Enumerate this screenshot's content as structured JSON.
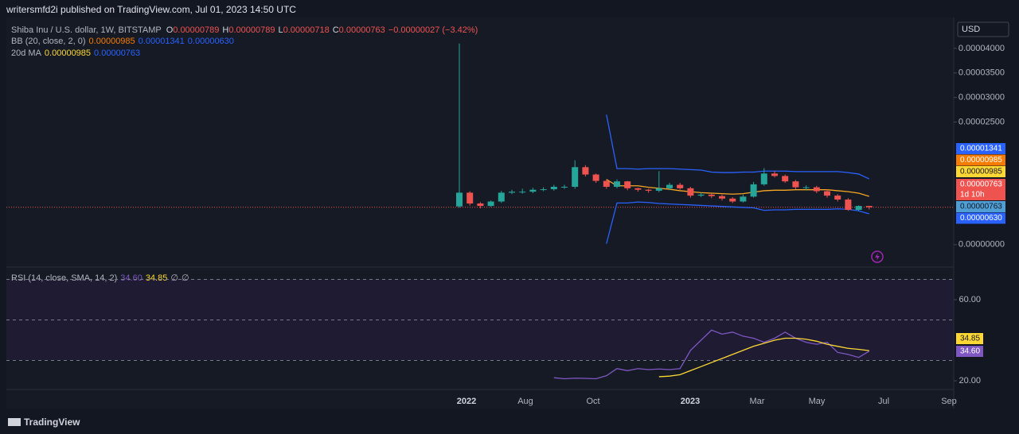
{
  "header": {
    "text": "writersmfd2i published on TradingView.com, Jul 01, 2023 14:50 UTC"
  },
  "currency": "USD",
  "footer": {
    "brand": "TradingView"
  },
  "legend": {
    "symbol": "Shiba Inu / U.S. dollar, 1W, BITSTAMP",
    "ohlc": [
      {
        "k": "O",
        "v": "0.00000789"
      },
      {
        "k": "H",
        "v": "0.00000789"
      },
      {
        "k": "L",
        "v": "0.00000718"
      },
      {
        "k": "C",
        "v": "0.00000763"
      }
    ],
    "change": "−0.00000027 (−3.42%)",
    "bb": {
      "name": "BB (20, close, 2, 0)",
      "values": [
        "0.00000985",
        "0.00001341",
        "0.00000630"
      ]
    },
    "ma": {
      "name": "20d MA",
      "values": [
        "0.00000985",
        "0.00000763"
      ]
    },
    "rsi": {
      "name": "RSI (14, close, SMA, 14, 2)",
      "values": [
        "34.60",
        "34.85",
        "∅",
        "∅"
      ]
    }
  },
  "price_tags": [
    {
      "text": "0.00001341",
      "color": "#2962ff"
    },
    {
      "text": "0.00000985",
      "color": "#f57c00"
    },
    {
      "text": "0.00000985",
      "color": "#fdd835"
    },
    {
      "text": "0.00000763",
      "color": "#ef5350"
    },
    {
      "text": "1d 10h",
      "color": "#ef5350"
    },
    {
      "text": "0.00000763",
      "color": "#4f9fd6"
    },
    {
      "text": "0.00000630",
      "color": "#2962ff"
    }
  ],
  "x_labels": [
    "2022",
    "Aug",
    "Oct",
    "2023",
    "Mar",
    "May",
    "Jul",
    "Sep"
  ],
  "chart_data": {
    "type": "candlestick",
    "up_color": "#26a69a",
    "down_color": "#ef5350",
    "open": [
      7.8e-06,
      1.06e-05,
      8.4e-06,
      7.9e-06,
      8.8e-06,
      1.06e-05,
      1.08e-05,
      1.08e-05,
      1.12e-05,
      1.13e-05,
      1.18e-05,
      1.18e-05,
      1.58e-05,
      1.43e-05,
      1.3e-05,
      1.18e-05,
      1.29e-05,
      1.15e-05,
      1.12e-05,
      1.1e-05,
      1.15e-05,
      1.22e-05,
      1.15e-05,
      1e-05,
      1.02e-05,
      9.9e-06,
      9.4e-06,
      8.8e-06,
      9.8e-06,
      1.23e-05,
      1.45e-05,
      1.4e-05,
      1.29e-05,
      1.17e-05,
      1.17e-05,
      1.09e-05,
      1e-05,
      9.2e-06,
      7.1e-06,
      7.89e-06
    ],
    "high": [
      4.1e-05,
      1.09e-05,
      8.7e-06,
      9e-06,
      1.1e-05,
      1.12e-05,
      1.14e-05,
      1.16e-05,
      1.17e-05,
      1.22e-05,
      1.22e-05,
      1.72e-05,
      1.62e-05,
      1.45e-05,
      1.33e-05,
      1.33e-05,
      1.3e-05,
      1.16e-05,
      1.14e-05,
      1.5e-05,
      1.26e-05,
      1.26e-05,
      1.18e-05,
      1.06e-05,
      1.04e-05,
      1.02e-05,
      9.7e-06,
      1.02e-05,
      1.28e-05,
      1.56e-05,
      1.5e-05,
      1.43e-05,
      1.32e-05,
      1.21e-05,
      1.2e-05,
      1.13e-05,
      1.03e-05,
      9.5e-06,
      8e-06,
      7.89e-06
    ],
    "low": [
      7.5e-06,
      8e-06,
      7.4e-06,
      7.7e-06,
      8.5e-06,
      1.03e-05,
      1.04e-05,
      1.05e-05,
      1.09e-05,
      1.1e-05,
      1.14e-05,
      1.14e-05,
      1.39e-05,
      1.26e-05,
      1.14e-05,
      1.15e-05,
      1.11e-05,
      1.08e-05,
      1.06e-05,
      1.07e-05,
      1.11e-05,
      1.12e-05,
      9.6e-06,
      9.7e-06,
      9.5e-06,
      9e-06,
      8.5e-06,
      8.6e-06,
      9.6e-06,
      1.2e-05,
      1.37e-05,
      1.26e-05,
      1.13e-05,
      1.12e-05,
      1.05e-05,
      9.6e-06,
      8.8e-06,
      6.9e-06,
      6.9e-06,
      7.18e-06
    ],
    "close": [
      1.06e-05,
      8.4e-06,
      7.9e-06,
      8.8e-06,
      1.06e-05,
      1.08e-05,
      1.08e-05,
      1.12e-05,
      1.13e-05,
      1.18e-05,
      1.18e-05,
      1.58e-05,
      1.43e-05,
      1.3e-05,
      1.18e-05,
      1.29e-05,
      1.15e-05,
      1.12e-05,
      1.1e-05,
      1.15e-05,
      1.22e-05,
      1.15e-05,
      1e-05,
      1.02e-05,
      9.9e-06,
      9.4e-06,
      8.8e-06,
      9.8e-06,
      1.23e-05,
      1.45e-05,
      1.4e-05,
      1.29e-05,
      1.17e-05,
      1.17e-05,
      1.09e-05,
      1e-05,
      9.2e-06,
      7.1e-06,
      7.89e-06,
      7.63e-06
    ],
    "bb_upper": [
      null,
      null,
      null,
      null,
      null,
      null,
      null,
      null,
      null,
      null,
      null,
      null,
      null,
      null,
      2.65e-05,
      1.55e-05,
      1.55e-05,
      1.54e-05,
      1.55e-05,
      1.55e-05,
      1.55e-05,
      1.54e-05,
      1.53e-05,
      1.52e-05,
      1.48e-05,
      1.47e-05,
      1.47e-05,
      1.48e-05,
      1.48e-05,
      1.5e-05,
      1.5e-05,
      1.5e-05,
      1.49e-05,
      1.49e-05,
      1.49e-05,
      1.49e-05,
      1.49e-05,
      1.47e-05,
      1.44e-05,
      1.341e-05
    ],
    "bb_basis": [
      null,
      null,
      null,
      null,
      null,
      null,
      null,
      null,
      null,
      null,
      null,
      null,
      null,
      null,
      1.33e-05,
      1.2e-05,
      1.2e-05,
      1.2e-05,
      1.17e-05,
      1.15e-05,
      1.13e-05,
      1.1e-05,
      1.08e-05,
      1.06e-05,
      1.05e-05,
      1.04e-05,
      1.03e-05,
      1.04e-05,
      1.07e-05,
      1.1e-05,
      1.11e-05,
      1.11e-05,
      1.12e-05,
      1.12e-05,
      1.12e-05,
      1.12e-05,
      1.1e-05,
      1.08e-05,
      1.05e-05,
      9.85e-06
    ],
    "bb_lower": [
      null,
      null,
      null,
      null,
      null,
      null,
      null,
      null,
      null,
      null,
      null,
      null,
      null,
      null,
      2e-07,
      8.5e-06,
      8.5e-06,
      8.7e-06,
      8.6e-06,
      8.4e-06,
      8.3e-06,
      8.2e-06,
      8.1e-06,
      8e-06,
      7.9e-06,
      7.8e-06,
      7.7e-06,
      7.6e-06,
      7.5e-06,
      7e-06,
      7.1e-06,
      7.1e-06,
      7.2e-06,
      7.2e-06,
      7.2e-06,
      7.2e-06,
      7.3e-06,
      7.2e-06,
      6.9e-06,
      6.3e-06
    ],
    "band_color": "#2962ff",
    "basis_color": "#f5a623",
    "ylim": [
      -4.4e-06,
      4.63e-05
    ],
    "yticks": [
      {
        "value": 4e-05,
        "label": "0.00004000"
      },
      {
        "value": 3.5e-05,
        "label": "0.00003500"
      },
      {
        "value": 3e-05,
        "label": "0.00003000"
      },
      {
        "value": 2.5e-05,
        "label": "0.00002500"
      },
      {
        "value": 0,
        "label": "0.00000000"
      }
    ],
    "rsi": {
      "values": [
        null,
        null,
        null,
        null,
        null,
        null,
        null,
        null,
        null,
        21.5,
        21,
        21.3,
        21.2,
        21,
        22.5,
        26,
        25,
        26,
        25.5,
        25.8,
        25.5,
        26,
        35,
        40,
        45,
        43,
        44,
        42,
        41,
        39,
        41,
        44,
        41,
        39,
        38,
        39,
        34,
        33,
        31.5,
        34.6
      ],
      "ma": [
        null,
        null,
        null,
        null,
        null,
        null,
        null,
        null,
        null,
        null,
        null,
        null,
        null,
        null,
        null,
        null,
        null,
        null,
        null,
        22,
        22.3,
        23,
        25,
        27,
        29,
        31,
        33,
        35,
        37,
        38.5,
        40,
        41,
        41,
        40.5,
        39.5,
        38,
        37,
        36,
        35.5,
        34.85
      ],
      "color": "#7e57c2",
      "ma_color": "#fdd835",
      "bands": [
        70,
        50,
        30
      ],
      "ylim": [
        15.7,
        75.3
      ],
      "yticks": [
        {
          "value": 60,
          "label": "60.00"
        },
        {
          "value": 20,
          "label": "20.00"
        }
      ],
      "tags": [
        "34.85",
        "34.60"
      ]
    }
  }
}
